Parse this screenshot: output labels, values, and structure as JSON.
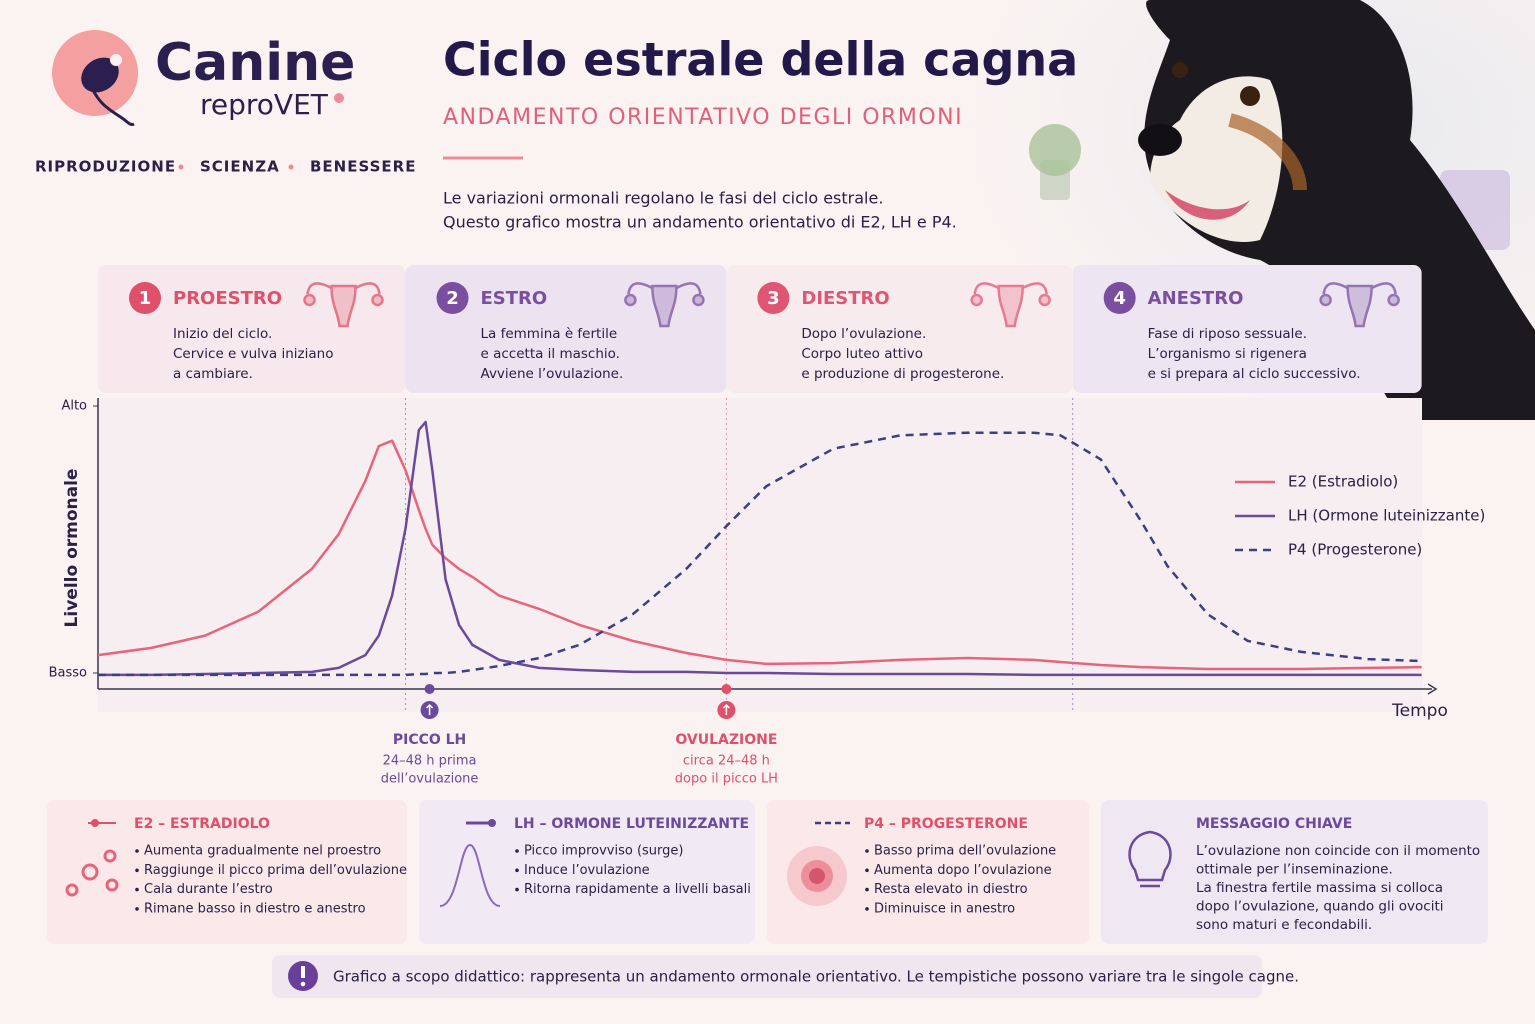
{
  "header": {
    "brand": "Canine",
    "brand_sub": "reproVET",
    "tagline": [
      "RIPRODUZIONE",
      "SCIENZA",
      "BENESSERE"
    ],
    "title": "Ciclo estrale della cagna",
    "subtitle": "ANDAMENTO ORIENTATIVO DEGLI ORMONI",
    "intro": [
      "Le variazioni ormonali regolano le fasi del ciclo estrale.",
      "Questo grafico mostra un andamento orientativo di E2, LH e P4."
    ]
  },
  "chart_data": {
    "type": "line",
    "y_label": "Livello ormonale",
    "x_label": "Tempo",
    "x": [
      0,
      4,
      8,
      12,
      16,
      18,
      20,
      21,
      22,
      23,
      24,
      24.5,
      25,
      26,
      27,
      28,
      30,
      33,
      36,
      40,
      44,
      47,
      50,
      55,
      60,
      65,
      70,
      72,
      75,
      78,
      80,
      83,
      86,
      90,
      95,
      99
    ],
    "xlim": [
      0,
      100
    ],
    "ylim": [
      -6,
      103
    ],
    "yticks": [
      {
        "value": 0,
        "label": "Basso"
      },
      {
        "value": 100,
        "label": "Alto"
      }
    ],
    "legend": "right",
    "series": [
      {
        "name": "E2 (Estradiolo)",
        "color": "#e8647a",
        "style": "solid",
        "values": [
          6.7,
          9.4,
          14,
          23,
          39,
          52,
          72,
          85,
          87,
          76,
          61,
          54,
          48,
          43,
          39,
          36,
          29,
          24,
          18,
          12,
          7.5,
          4.9,
          3.4,
          3.7,
          4.9,
          5.6,
          4.9,
          4.1,
          3,
          2.2,
          1.9,
          1.5,
          1.5,
          1.5,
          1.9,
          2.2
        ]
      },
      {
        "name": "LH (Ormone luteinizzante)",
        "color": "#6a4a9c",
        "style": "solid",
        "values": [
          -0.7,
          -0.7,
          -0.4,
          0,
          0.4,
          1.9,
          6.7,
          14,
          29,
          54,
          91,
          94,
          76,
          35,
          18,
          10.5,
          4.9,
          1.9,
          1.1,
          0.4,
          0.4,
          0,
          0,
          -0.4,
          -0.4,
          -0.4,
          -0.7,
          -0.7,
          -0.7,
          -0.7,
          -0.7,
          -0.7,
          -0.7,
          -0.7,
          -0.7,
          -0.7
        ]
      },
      {
        "name": "P4 (Progesterone)",
        "color": "#3d3f86",
        "style": "dashed",
        "values": [
          -0.7,
          -0.7,
          -0.7,
          -0.7,
          -0.7,
          -0.7,
          -0.7,
          -0.7,
          -0.7,
          -0.7,
          -0.4,
          -0.4,
          0,
          0,
          0.4,
          1.1,
          2.6,
          5.6,
          10.5,
          22,
          39,
          55,
          70,
          84,
          89,
          90,
          90,
          89,
          80,
          57,
          40,
          22,
          12,
          7.9,
          5.2,
          4.5
        ]
      }
    ],
    "phases": [
      {
        "number": 1,
        "name": "PROESTRO",
        "color": "#e0506a",
        "start": 0,
        "end": 23,
        "text": [
          "Inizio del ciclo.",
          "Cervice e vulva iniziano",
          "a cambiare."
        ]
      },
      {
        "number": 2,
        "name": "ESTRO",
        "color": "#7a4fa0",
        "start": 23,
        "end": 47,
        "text": [
          "La femmina è fertile",
          "e accetta il maschio.",
          "Avviene l’ovulazione."
        ]
      },
      {
        "number": 3,
        "name": "DIESTRO",
        "color": "#df5674",
        "start": 47,
        "end": 72.9,
        "text": [
          "Dopo l’ovulazione.",
          "Corpo luteo attivo",
          "e produzione di progesterone."
        ]
      },
      {
        "number": 4,
        "name": "ANESTRO",
        "color": "#7a4fa0",
        "start": 72.9,
        "end": 99,
        "text": [
          "Fase di riposo sessuale.",
          "L’organismo si rigenera",
          "e si prepara al ciclo successivo."
        ]
      }
    ],
    "events": [
      {
        "x": 24.8,
        "label": "PICCO LH",
        "color": "#6a4a9c",
        "text": [
          "24–48 h prima",
          "dell’ovulazione"
        ]
      },
      {
        "x": 47,
        "label": "OVULAZIONE",
        "color": "#e0506a",
        "text": [
          "circa 24–48 h",
          "dopo il picco LH"
        ]
      }
    ]
  },
  "cards": [
    {
      "title": "E2 – ESTRADIOLO",
      "items": [
        "Aumenta gradualmente nel proestro",
        "Raggiunge il picco prima dell’ovulazione",
        "Cala durante l’estro",
        "Rimane basso in diestro e anestro"
      ]
    },
    {
      "title": "LH – ORMONE LUTEINIZZANTE",
      "items": [
        "Picco improvviso (surge)",
        "Induce l’ovulazione",
        "Ritorna rapidamente a livelli basali"
      ]
    },
    {
      "title": "P4 – PROGESTERONE",
      "items": [
        "Basso prima dell’ovulazione",
        "Aumenta dopo l’ovulazione",
        "Resta elevato in diestro",
        "Diminuisce in anestro"
      ]
    },
    {
      "title": "MESSAGGIO CHIAVE",
      "text": [
        "L’ovulazione non coincide con il momento",
        "ottimale per l’inseminazione.",
        "La finestra fertile massima si colloca",
        "dopo l’ovulazione, quando gli ovociti",
        "sono maturi e fecondabili."
      ]
    }
  ],
  "note": "Grafico a scopo didattico: rappresenta un andamento ormonale orientativo. Le tempistiche possono variare tra le singole cagne."
}
